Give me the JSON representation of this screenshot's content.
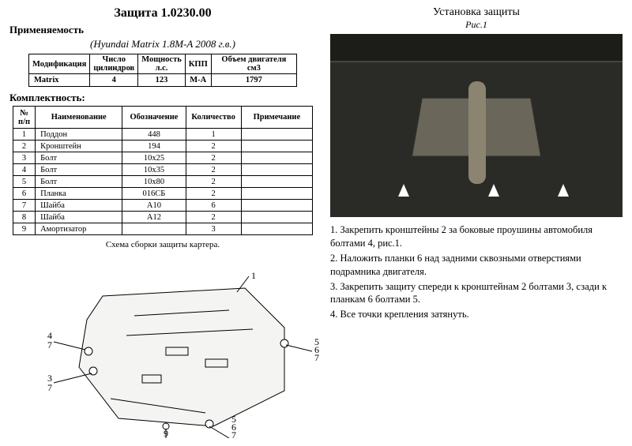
{
  "header": {
    "main_title": "Защита 1.0230.00",
    "applicability_label": "Применяемость",
    "vehicle_line": "(Hyundai Matrix 1.8M-A 2008 г.в.)",
    "install_title": "Установка защиты",
    "fig_label": "Рис.1"
  },
  "mod_table": {
    "headers": [
      "Модификация",
      "Число\nцилиндров",
      "Мощность\nл.с.",
      "КПП",
      "Объем двигателя см3"
    ],
    "row": [
      "Matrix",
      "4",
      "123",
      "M-A",
      "1797"
    ]
  },
  "parts_label": "Комплектность:",
  "parts_table": {
    "headers": [
      "№\nп/п",
      "Наименование",
      "Обозначение",
      "Количество",
      "Примечание"
    ],
    "rows": [
      [
        "1",
        "Поддон",
        "448",
        "1",
        ""
      ],
      [
        "2",
        "Кронштейн",
        "194",
        "2",
        ""
      ],
      [
        "3",
        "Болт",
        "10х25",
        "2",
        ""
      ],
      [
        "4",
        "Болт",
        "10х35",
        "2",
        ""
      ],
      [
        "5",
        "Болт",
        "10х80",
        "2",
        ""
      ],
      [
        "6",
        "Планка",
        "016СБ",
        "2",
        ""
      ],
      [
        "7",
        "Шайба",
        "А10",
        "6",
        ""
      ],
      [
        "8",
        "Шайба",
        "А12",
        "2",
        ""
      ],
      [
        "9",
        "Амортизатор",
        "",
        "3",
        ""
      ]
    ],
    "caption": "Схема сборки защиты картера."
  },
  "instructions": [
    "1. Закрепить кронштейны 2 за боковые проушины автомобиля болтами 4, рис.1.",
    "2. Наложить планки 6 над задними сквозными отверстиями подрамника двигателя.",
    "3. Закрепить защиту спереди к кронштейнам 2 болтами 3, сзади к планкам 6 болтами 5.",
    "4. Все точки крепления затянуть."
  ],
  "diagram": {
    "callouts": {
      "c1": "1",
      "c47_top": "4",
      "c47_bot": "7",
      "c37_top": "3",
      "c37_bot": "7",
      "c9": "9",
      "c567a": "5",
      "c567b": "6",
      "c567c": "7",
      "d567a": "5",
      "d567b": "6",
      "d567c": "7"
    },
    "style": {
      "stroke": "#000000",
      "fill": "#ffffff",
      "plate_fill": "#f4f4f2",
      "line_width": 1
    }
  },
  "photo": {
    "bg": "#2a2a26",
    "arrow_color": "#ffffff"
  }
}
